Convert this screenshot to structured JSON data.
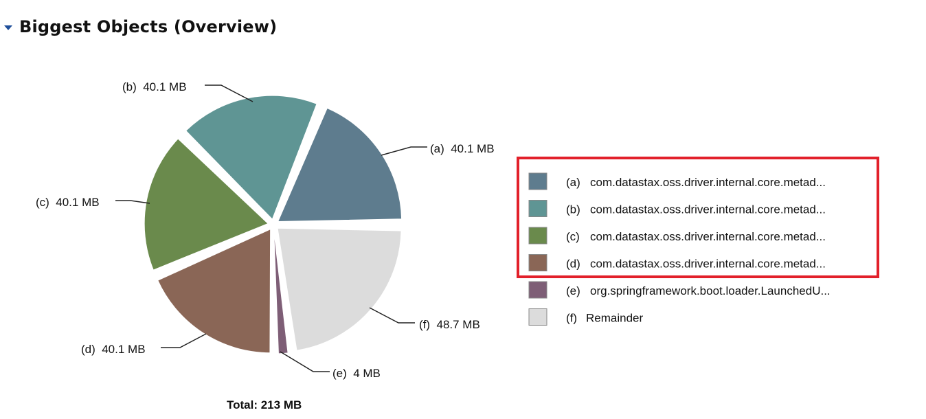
{
  "section": {
    "title": "Biggest Objects (Overview)"
  },
  "total_label": "Total: 213 MB",
  "chart_data": {
    "type": "pie",
    "title": "Biggest Objects (Overview)",
    "slices": [
      {
        "key": "(a)",
        "value_mb": 40.1,
        "label": "40.1 MB",
        "legend": "com.datastax.oss.driver.internal.core.metad...",
        "color": "#5e7c8e"
      },
      {
        "key": "(b)",
        "value_mb": 40.1,
        "label": "40.1 MB",
        "legend": "com.datastax.oss.driver.internal.core.metad...",
        "color": "#5f9594"
      },
      {
        "key": "(c)",
        "value_mb": 40.1,
        "label": "40.1 MB",
        "legend": "com.datastax.oss.driver.internal.core.metad...",
        "color": "#6a8a4c"
      },
      {
        "key": "(d)",
        "value_mb": 40.1,
        "label": "40.1 MB",
        "legend": "com.datastax.oss.driver.internal.core.metad...",
        "color": "#8a6656"
      },
      {
        "key": "(e)",
        "value_mb": 4,
        "label": "4 MB",
        "legend": "org.springframework.boot.loader.LaunchedU...",
        "color": "#7e5e76"
      },
      {
        "key": "(f)",
        "value_mb": 48.7,
        "label": "48.7 MB",
        "legend": "Remainder",
        "color": "#dcdcdc"
      }
    ],
    "total": "213 MB",
    "legend_position": "right"
  },
  "highlight": {
    "color": "#e2202a"
  }
}
